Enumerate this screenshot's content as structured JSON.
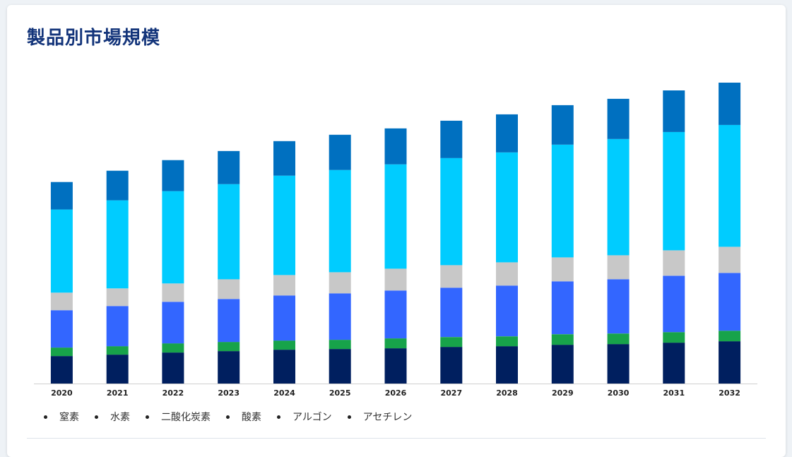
{
  "title": "製品別市場規模",
  "chart_data": {
    "type": "bar",
    "stacked": true,
    "categories": [
      "2020",
      "2021",
      "2022",
      "2023",
      "2024",
      "2025",
      "2026",
      "2027",
      "2028",
      "2029",
      "2030",
      "2031",
      "2032"
    ],
    "series": [
      {
        "name": "窒素",
        "color": "#001f5f",
        "values": [
          39,
          41,
          44,
          46,
          48,
          49,
          50,
          52,
          53,
          55,
          56,
          58,
          60
        ]
      },
      {
        "name": "水素",
        "color": "#17a34a",
        "values": [
          12,
          12,
          13,
          13,
          13,
          13,
          14,
          14,
          14,
          15,
          15,
          15,
          15
        ]
      },
      {
        "name": "二酸化炭素",
        "color": "#3366ff",
        "values": [
          53,
          57,
          59,
          61,
          64,
          66,
          68,
          70,
          72,
          75,
          77,
          80,
          82
        ]
      },
      {
        "name": "酸素",
        "color": "#c8c8c8",
        "values": [
          25,
          25,
          26,
          28,
          29,
          30,
          31,
          32,
          33,
          34,
          34,
          36,
          37
        ]
      },
      {
        "name": "アルゴン",
        "color": "#00ccff",
        "values": [
          118,
          125,
          131,
          135,
          141,
          145,
          148,
          152,
          156,
          160,
          165,
          168,
          173
        ]
      },
      {
        "name": "アセチレン",
        "color": "#0070c0",
        "values": [
          39,
          42,
          44,
          47,
          49,
          50,
          51,
          53,
          54,
          56,
          57,
          59,
          60
        ]
      }
    ],
    "ylim": [
      0,
      435
    ],
    "legend_position": "bottom-left",
    "grid": false
  }
}
